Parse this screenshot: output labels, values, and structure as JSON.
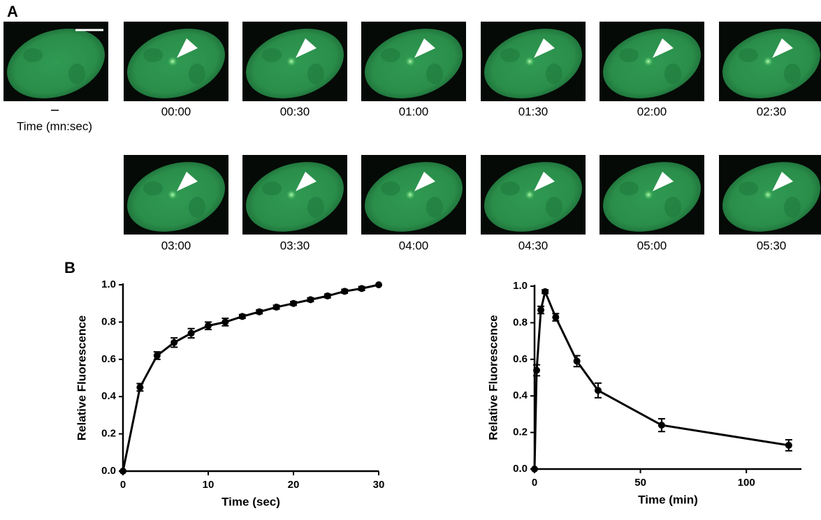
{
  "panel_a": {
    "label": "A",
    "time_caption": "Time (mn:sec)",
    "times": [
      "00:00",
      "00:30",
      "01:00",
      "01:30",
      "02:00",
      "02:30",
      "03:00",
      "03:30",
      "04:00",
      "04:30",
      "05:00",
      "05:30"
    ]
  },
  "panel_b": {
    "label": "B"
  },
  "chart_data": [
    {
      "type": "line",
      "x_label": "Time (sec)",
      "y_label": "Relative Fluorescence",
      "color": "#000000",
      "x": [
        0,
        2,
        4,
        6,
        8,
        10,
        12,
        14,
        16,
        18,
        20,
        22,
        24,
        26,
        28,
        30
      ],
      "values": [
        0,
        0.45,
        0.62,
        0.69,
        0.74,
        0.78,
        0.8,
        0.83,
        0.855,
        0.88,
        0.9,
        0.92,
        0.94,
        0.965,
        0.98,
        1.0
      ],
      "errors": [
        0,
        0.02,
        0.02,
        0.025,
        0.025,
        0.02,
        0.02,
        0.01,
        0.01,
        0.01,
        0.01,
        0.01,
        0.01,
        0.01,
        0.01,
        0
      ],
      "xlim": [
        0,
        30
      ],
      "xticks": [
        0,
        10,
        20,
        30
      ],
      "ylim": [
        0,
        1
      ],
      "yticks": [
        {
          "value": 0,
          "label": "0.0"
        },
        {
          "value": 0.2,
          "label": "0.2"
        },
        {
          "value": 0.4,
          "label": "0.4"
        },
        {
          "value": 0.6,
          "label": "0.6"
        },
        {
          "value": 0.8,
          "label": "0.8"
        },
        {
          "value": 1,
          "label": "1.0"
        }
      ]
    },
    {
      "type": "line",
      "x_label": "Time (min)",
      "y_label": "Relative Fluorescence",
      "color": "#000000",
      "x": [
        0,
        1,
        3,
        5,
        10,
        20,
        30,
        60,
        120
      ],
      "values": [
        0,
        0.54,
        0.87,
        0.97,
        0.83,
        0.59,
        0.43,
        0.24,
        0.13
      ],
      "errors": [
        0,
        0.03,
        0.02,
        0.01,
        0.02,
        0.03,
        0.04,
        0.035,
        0.03
      ],
      "xlim": [
        0,
        126
      ],
      "xticks": [
        0,
        50,
        100
      ],
      "ylim": [
        0,
        1
      ],
      "yticks": [
        {
          "value": 0,
          "label": "0.0"
        },
        {
          "value": 0.2,
          "label": "0.2"
        },
        {
          "value": 0.4,
          "label": "0.4"
        },
        {
          "value": 0.6,
          "label": "0.6"
        },
        {
          "value": 0.8,
          "label": "0.8"
        },
        {
          "value": 1,
          "label": "1.0"
        }
      ]
    }
  ]
}
